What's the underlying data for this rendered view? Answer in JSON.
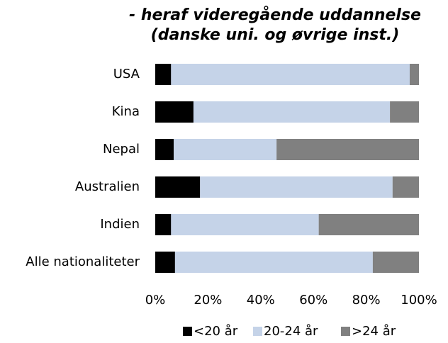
{
  "chart_data": {
    "type": "stacked-barh",
    "title": [
      "- heraf videregående uddannelse",
      "(danske uni. og øvrige inst.)"
    ],
    "categories": [
      "USA",
      "Kina",
      "Nepal",
      "Australien",
      "Indien",
      "Alle nationaliteter"
    ],
    "series": [
      {
        "name": "<20 år",
        "color": "#000000",
        "values": [
          6,
          14.5,
          7,
          17,
          6,
          7.5
        ]
      },
      {
        "name": "20-24 år",
        "color": "#c5d3e8",
        "values": [
          90.5,
          74.5,
          39,
          73,
          56,
          75
        ]
      },
      {
        "name": ">24 år",
        "color": "#808080",
        "values": [
          3.5,
          11,
          54,
          10,
          38,
          17.5
        ]
      }
    ],
    "xlim": [
      0,
      100
    ],
    "xticks": [
      {
        "value": 0,
        "label": "0%"
      },
      {
        "value": 20,
        "label": "20%"
      },
      {
        "value": 40,
        "label": "40%"
      },
      {
        "value": 60,
        "label": "60%"
      },
      {
        "value": 80,
        "label": "80%"
      },
      {
        "value": 100,
        "label": "100%"
      }
    ],
    "legend": "bottom"
  }
}
